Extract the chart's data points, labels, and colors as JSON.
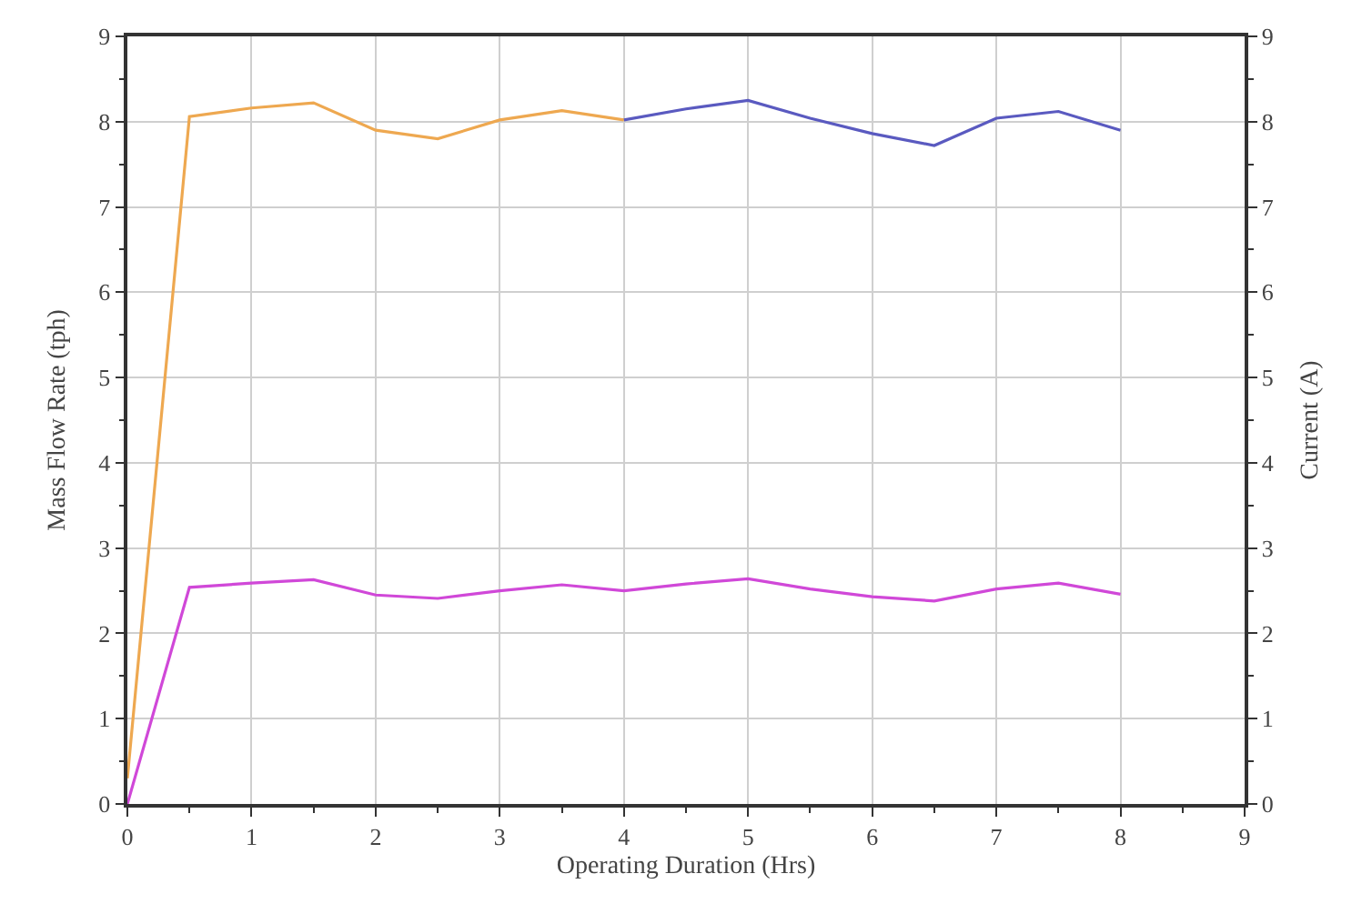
{
  "chart_data": {
    "type": "line",
    "xlabel": "Operating Duration (Hrs)",
    "ylabel": "Mass Flow Rate (tph)",
    "y2label": "Current (A)",
    "xlim": [
      0,
      9
    ],
    "xticks": [
      0,
      1,
      2,
      3,
      4,
      5,
      6,
      7,
      8,
      9
    ],
    "ylim": [
      0,
      9
    ],
    "yticks": [
      0,
      1,
      2,
      3,
      4,
      5,
      6,
      7,
      8,
      9
    ],
    "y2lim": [
      0,
      9
    ],
    "y2ticks": [
      0,
      1,
      2,
      3,
      4,
      5,
      6,
      7,
      8,
      9
    ],
    "grid": true,
    "marker": "none",
    "line_style": "solid",
    "series": [
      {
        "color": "#eea850",
        "x": [
          0,
          0.5,
          1,
          1.5,
          2,
          2.5,
          3,
          3.5,
          4
        ],
        "values": [
          0.3,
          8.06,
          8.16,
          8.22,
          7.9,
          7.8,
          8.02,
          8.13,
          8.02
        ]
      },
      {
        "color": "#5a5ac0",
        "x": [
          4,
          4.5,
          5,
          5.5,
          6,
          6.5,
          7,
          7.5,
          8
        ],
        "values": [
          8.02,
          8.15,
          8.25,
          8.04,
          7.86,
          7.72,
          8.04,
          8.12,
          7.9
        ]
      },
      {
        "color": "#d048d8",
        "axis": "y2",
        "x": [
          0,
          0.5,
          1,
          1.5,
          2,
          2.5,
          3,
          3.5,
          4,
          4.5,
          5,
          5.5,
          6,
          6.5,
          7,
          7.5,
          8
        ],
        "values": [
          0,
          2.54,
          2.59,
          2.63,
          2.45,
          2.41,
          2.5,
          2.57,
          2.5,
          2.58,
          2.64,
          2.52,
          2.43,
          2.38,
          2.52,
          2.59,
          2.46
        ]
      }
    ]
  }
}
